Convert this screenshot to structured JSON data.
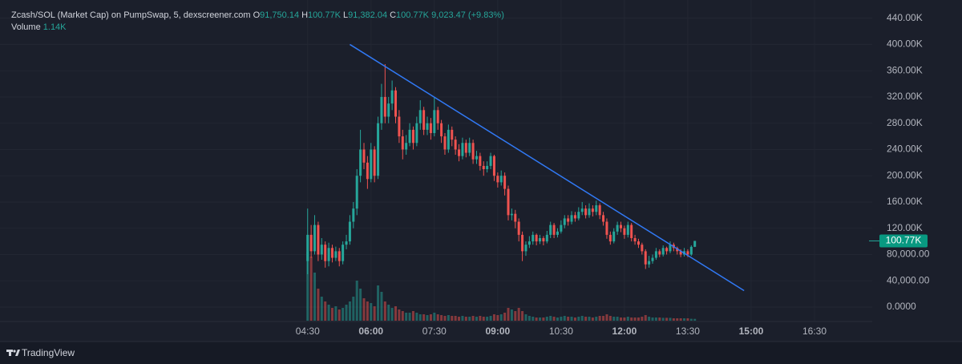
{
  "chart_data": {
    "type": "candlestick",
    "title": "Zcash/SOL (Market Cap) on PumpSwap, 5, dexscreener.com",
    "readout": [
      {
        "key": "O",
        "value": "91,750.14"
      },
      {
        "key": "H",
        "value": "100.77K"
      },
      {
        "key": "L",
        "value": "91,382.04"
      },
      {
        "key": "C",
        "value": "100.77K"
      }
    ],
    "change": "9,023.47 (+9.83%)",
    "volume_label": "Volume",
    "volume_readout": "1.14K",
    "x": [
      270,
      275,
      280,
      285,
      290,
      295,
      300,
      305,
      310,
      315,
      320,
      325,
      330,
      335,
      340,
      345,
      350,
      355,
      360,
      365,
      370,
      375,
      380,
      385,
      390,
      395,
      400,
      405,
      410,
      415,
      420,
      425,
      430,
      435,
      440,
      445,
      450,
      455,
      460,
      465,
      470,
      475,
      480,
      485,
      490,
      495,
      500,
      505,
      510,
      515,
      520,
      525,
      530,
      535,
      540,
      545,
      550,
      555,
      560,
      565,
      570,
      575,
      580,
      585,
      590,
      595,
      600,
      605,
      610,
      615,
      620,
      625,
      630,
      635,
      640,
      645,
      650,
      655,
      660,
      665,
      670,
      675,
      680,
      685,
      690,
      695,
      700,
      705,
      710,
      715,
      720,
      725,
      730,
      735,
      740,
      745,
      750,
      755,
      760,
      765,
      770,
      775,
      780,
      785,
      790,
      795,
      800,
      805,
      810,
      815,
      820
    ],
    "open": [
      70000,
      110000,
      85000,
      125000,
      80000,
      95000,
      70000,
      90000,
      75000,
      85000,
      70000,
      95000,
      100000,
      130000,
      150000,
      200000,
      240000,
      220000,
      195000,
      240000,
      200000,
      280000,
      320000,
      290000,
      310000,
      330000,
      290000,
      260000,
      240000,
      250000,
      270000,
      250000,
      280000,
      300000,
      270000,
      280000,
      265000,
      300000,
      280000,
      260000,
      240000,
      270000,
      255000,
      240000,
      230000,
      250000,
      235000,
      250000,
      225000,
      230000,
      215000,
      210000,
      215000,
      230000,
      200000,
      190000,
      200000,
      180000,
      140000,
      142000,
      130000,
      110000,
      85000,
      95000,
      100000,
      110000,
      100000,
      105000,
      100000,
      110000,
      125000,
      110000,
      115000,
      125000,
      135000,
      130000,
      140000,
      135000,
      145000,
      150000,
      140000,
      150000,
      145000,
      155000,
      140000,
      130000,
      110000,
      100000,
      115000,
      125000,
      120000,
      110000,
      125000,
      105000,
      100000,
      95000,
      85000,
      65000,
      70000,
      75000,
      85000,
      80000,
      90000,
      85000,
      95000,
      90000,
      85000,
      80000,
      85000,
      80000,
      91750.14
    ],
    "high": [
      150000,
      125000,
      140000,
      130000,
      105000,
      100000,
      98000,
      95000,
      92000,
      90000,
      100000,
      110000,
      140000,
      160000,
      210000,
      270000,
      250000,
      230000,
      250000,
      245000,
      290000,
      340000,
      370000,
      320000,
      345000,
      335000,
      300000,
      270000,
      262000,
      280000,
      275000,
      290000,
      315000,
      305000,
      290000,
      288000,
      320000,
      305000,
      285000,
      265000,
      278000,
      275000,
      260000,
      248000,
      258000,
      255000,
      258000,
      255000,
      238000,
      235000,
      222000,
      222000,
      235000,
      232000,
      205000,
      208000,
      205000,
      185000,
      150000,
      148000,
      135000,
      115000,
      100000,
      108000,
      115000,
      112000,
      110000,
      108000,
      116000,
      130000,
      128000,
      120000,
      132000,
      140000,
      140000,
      146000,
      145000,
      152000,
      160000,
      155000,
      158000,
      155000,
      162000,
      158000,
      145000,
      135000,
      115000,
      120000,
      130000,
      130000,
      124000,
      130000,
      128000,
      110000,
      104000,
      98000,
      88000,
      78000,
      80000,
      90000,
      88000,
      94000,
      92000,
      100000,
      98000,
      92000,
      88000,
      90000,
      88000,
      94000,
      100770
    ],
    "low": [
      50000,
      75000,
      80000,
      70000,
      72000,
      60000,
      62000,
      68000,
      70000,
      62000,
      65000,
      88000,
      95000,
      120000,
      140000,
      190000,
      210000,
      180000,
      190000,
      190000,
      195000,
      270000,
      280000,
      280000,
      300000,
      280000,
      250000,
      225000,
      232000,
      245000,
      240000,
      245000,
      270000,
      262000,
      262000,
      255000,
      260000,
      270000,
      250000,
      232000,
      235000,
      245000,
      232000,
      222000,
      225000,
      228000,
      230000,
      218000,
      218000,
      208000,
      200000,
      205000,
      210000,
      192000,
      182000,
      185000,
      170000,
      132000,
      132000,
      120000,
      100000,
      70000,
      78000,
      90000,
      95000,
      94000,
      96000,
      94000,
      97000,
      105000,
      105000,
      106000,
      112000,
      120000,
      124000,
      126000,
      130000,
      132000,
      140000,
      135000,
      136000,
      138000,
      140000,
      134000,
      124000,
      104000,
      95000,
      97000,
      110000,
      114000,
      104000,
      106000,
      100000,
      95000,
      90000,
      80000,
      58000,
      60000,
      66000,
      72000,
      76000,
      77000,
      80000,
      82000,
      85000,
      80000,
      76000,
      77000,
      76000,
      78000,
      91382.04
    ],
    "close": [
      110000,
      85000,
      125000,
      80000,
      95000,
      70000,
      90000,
      75000,
      85000,
      70000,
      95000,
      100000,
      130000,
      150000,
      200000,
      240000,
      220000,
      195000,
      240000,
      200000,
      280000,
      320000,
      290000,
      310000,
      330000,
      290000,
      260000,
      240000,
      250000,
      270000,
      250000,
      280000,
      300000,
      270000,
      280000,
      265000,
      300000,
      280000,
      260000,
      240000,
      270000,
      255000,
      240000,
      230000,
      250000,
      235000,
      250000,
      225000,
      230000,
      215000,
      210000,
      215000,
      230000,
      200000,
      190000,
      200000,
      180000,
      140000,
      142000,
      130000,
      110000,
      85000,
      95000,
      100000,
      110000,
      100000,
      105000,
      100000,
      110000,
      125000,
      110000,
      115000,
      125000,
      135000,
      130000,
      140000,
      135000,
      145000,
      150000,
      140000,
      150000,
      145000,
      155000,
      140000,
      130000,
      110000,
      100000,
      115000,
      125000,
      120000,
      110000,
      125000,
      105000,
      100000,
      95000,
      85000,
      65000,
      70000,
      75000,
      85000,
      80000,
      90000,
      85000,
      95000,
      90000,
      85000,
      80000,
      85000,
      80000,
      91750.14,
      100770
    ],
    "volume": [
      43000,
      40000,
      30000,
      20000,
      15000,
      12000,
      10000,
      8000,
      9000,
      7000,
      8000,
      10000,
      12000,
      15000,
      25000,
      20000,
      14000,
      12000,
      11000,
      9000,
      22000,
      18000,
      12000,
      10000,
      8000,
      9000,
      7000,
      6000,
      5000,
      5000,
      6000,
      5000,
      4000,
      4000,
      3500,
      4000,
      5000,
      4000,
      3500,
      3000,
      3500,
      3000,
      3000,
      2500,
      3000,
      2500,
      2500,
      3000,
      2500,
      3000,
      2500,
      2500,
      3000,
      4000,
      3500,
      4000,
      5000,
      8000,
      7000,
      6000,
      8000,
      6000,
      4000,
      3000,
      2500,
      2000,
      2000,
      2000,
      2500,
      3000,
      2500,
      2000,
      2500,
      3000,
      2500,
      2500,
      2000,
      2500,
      3000,
      2500,
      2500,
      2000,
      2500,
      3000,
      3000,
      4000,
      3000,
      2500,
      2500,
      2000,
      2000,
      2500,
      2000,
      2000,
      2000,
      2500,
      3500,
      2500,
      2000,
      2000,
      2000,
      1800,
      1800,
      1800,
      1500,
      1500,
      1500,
      1500,
      1500,
      1200,
      1140
    ],
    "up_color": "#26a69a",
    "down_color": "#ef5350",
    "xlim": [
      -167,
      1072
    ],
    "xticks": [
      {
        "value": 270,
        "label": "04:30"
      },
      {
        "value": 360,
        "label": "06:00"
      },
      {
        "value": 450,
        "label": "07:30"
      },
      {
        "value": 540,
        "label": "09:00"
      },
      {
        "value": 630,
        "label": "10:30"
      },
      {
        "value": 720,
        "label": "12:00"
      },
      {
        "value": 810,
        "label": "13:30"
      },
      {
        "value": 900,
        "label": "15:00"
      },
      {
        "value": 990,
        "label": "16:30"
      }
    ],
    "ylim": [
      -20800,
      467700
    ],
    "yticks": [
      {
        "value": 0,
        "label": "0.0000"
      },
      {
        "value": 40000,
        "label": "40,000.00"
      },
      {
        "value": 80000,
        "label": "80,000.00"
      },
      {
        "value": 120000,
        "label": "120.00K"
      },
      {
        "value": 160000,
        "label": "160.00K"
      },
      {
        "value": 200000,
        "label": "200.00K"
      },
      {
        "value": 240000,
        "label": "240.00K"
      },
      {
        "value": 280000,
        "label": "280.00K"
      },
      {
        "value": 320000,
        "label": "320.00K"
      },
      {
        "value": 360000,
        "label": "360.00K"
      },
      {
        "value": 400000,
        "label": "400.00K"
      },
      {
        "value": 440000,
        "label": "440.00K"
      }
    ],
    "y2lim": [
      0,
      200000
    ],
    "trendline": {
      "x": [
        330,
        890
      ],
      "values": [
        400000,
        25000
      ],
      "color": "#3179f5"
    },
    "last_price": {
      "value": 100770,
      "label": "100.77K"
    },
    "grid": true
  },
  "footer": {
    "brand": "TradingView"
  }
}
